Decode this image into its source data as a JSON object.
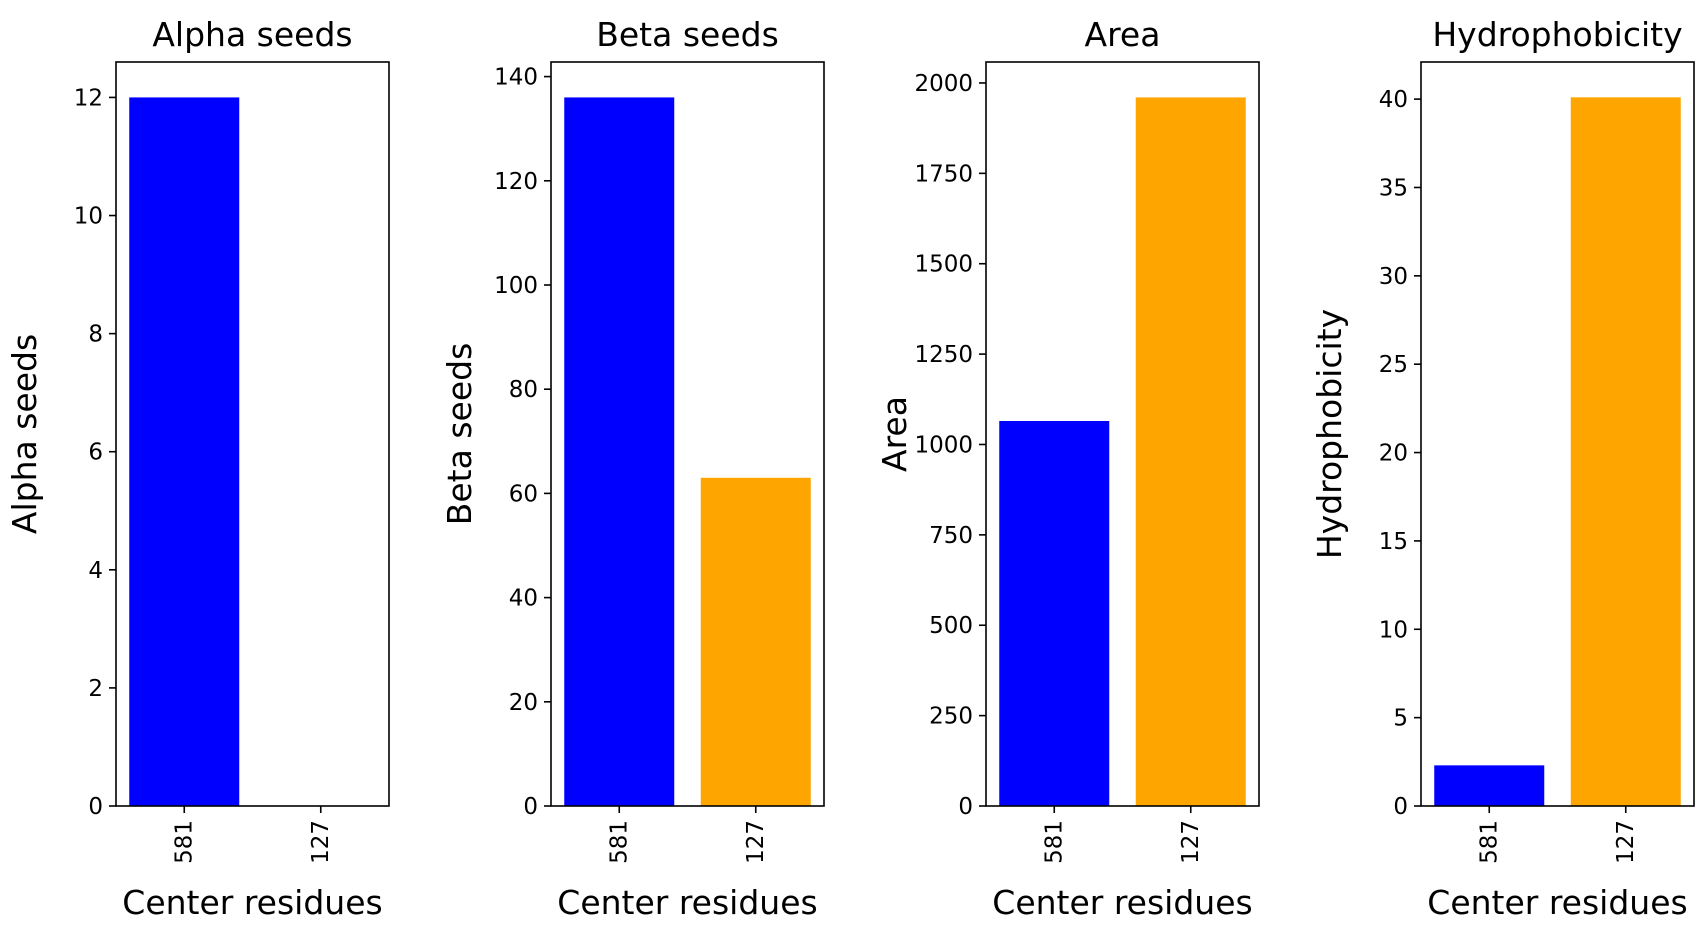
{
  "chart_data": [
    {
      "type": "bar",
      "title": "Alpha seeds",
      "xlabel": "Center residues",
      "ylabel": "Alpha seeds",
      "categories": [
        "581",
        "127"
      ],
      "values": [
        12,
        0
      ],
      "colors": [
        "#0000ff",
        "#ffa500"
      ],
      "ylim": [
        0,
        12.6
      ],
      "yticks": [
        0,
        2,
        4,
        6,
        8,
        10,
        12
      ]
    },
    {
      "type": "bar",
      "title": "Beta seeds",
      "xlabel": "Center residues",
      "ylabel": "Beta seeds",
      "categories": [
        "581",
        "127"
      ],
      "values": [
        136,
        63
      ],
      "colors": [
        "#0000ff",
        "#ffa500"
      ],
      "ylim": [
        0,
        142.8
      ],
      "yticks": [
        0,
        20,
        40,
        60,
        80,
        100,
        120,
        140
      ]
    },
    {
      "type": "bar",
      "title": "Area",
      "xlabel": "Center residues",
      "ylabel": "Area",
      "categories": [
        "581",
        "127"
      ],
      "values": [
        1065,
        1960
      ],
      "colors": [
        "#0000ff",
        "#ffa500"
      ],
      "ylim": [
        0,
        2058
      ],
      "yticks": [
        0,
        250,
        500,
        750,
        1000,
        1250,
        1500,
        1750,
        2000
      ]
    },
    {
      "type": "bar",
      "title": "Hydrophobicity",
      "xlabel": "Center residues",
      "ylabel": "Hydrophobicity",
      "categories": [
        "581",
        "127"
      ],
      "values": [
        2.3,
        40.1
      ],
      "colors": [
        "#0000ff",
        "#ffa500"
      ],
      "ylim": [
        0,
        42.1
      ],
      "yticks": [
        0,
        5,
        10,
        15,
        20,
        25,
        30,
        35,
        40
      ]
    }
  ]
}
